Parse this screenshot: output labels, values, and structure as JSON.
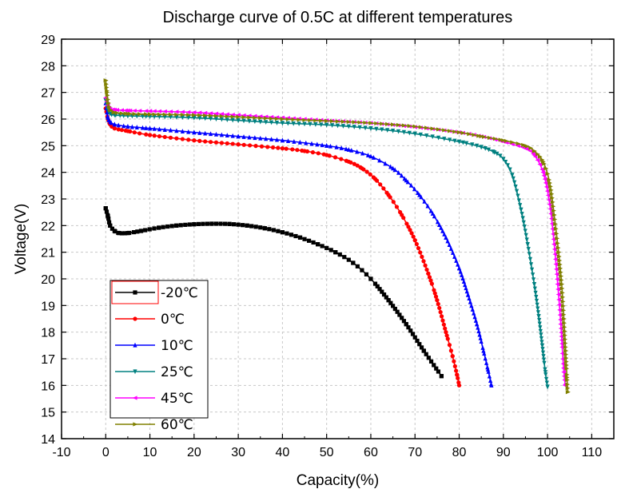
{
  "chart_data": {
    "type": "line",
    "title": "Discharge curve of 0.5C at different temperatures",
    "xlabel": "Capacity(%)",
    "ylabel": "Voltage(V)",
    "xlim": [
      -10,
      115
    ],
    "ylim": [
      14,
      29
    ],
    "xticks": [
      -10,
      0,
      10,
      20,
      30,
      40,
      50,
      60,
      70,
      80,
      90,
      100,
      110
    ],
    "yticks": [
      14,
      15,
      16,
      17,
      18,
      19,
      20,
      21,
      22,
      23,
      24,
      25,
      26,
      27,
      28,
      29
    ],
    "grid": true,
    "legend_position": "bottom-left",
    "series": [
      {
        "name": "-20℃",
        "color": "#000000",
        "marker": "square",
        "x": [
          0,
          0.5,
          1,
          2,
          3,
          5,
          8,
          12,
          16,
          20,
          24,
          28,
          32,
          36,
          40,
          44,
          48,
          52,
          56,
          60,
          64,
          68,
          72,
          76
        ],
        "y": [
          22.65,
          22.35,
          22.0,
          21.8,
          21.72,
          21.72,
          21.8,
          21.92,
          22.0,
          22.05,
          22.07,
          22.06,
          22.0,
          21.9,
          21.75,
          21.55,
          21.3,
          21.0,
          20.6,
          20.0,
          19.2,
          18.3,
          17.3,
          16.35
        ]
      },
      {
        "name": "0℃",
        "color": "#ff0000",
        "marker": "circle",
        "x": [
          0,
          0.5,
          1,
          2,
          5,
          10,
          20,
          30,
          40,
          45,
          50,
          55,
          58,
          61,
          64,
          67,
          70,
          73,
          75,
          77,
          78.5,
          79.5,
          80
        ],
        "y": [
          26.4,
          26.0,
          25.8,
          25.65,
          25.55,
          25.4,
          25.2,
          25.05,
          24.9,
          24.8,
          24.65,
          24.4,
          24.15,
          23.75,
          23.15,
          22.4,
          21.45,
          20.2,
          19.2,
          18.0,
          17.1,
          16.4,
          16.0
        ]
      },
      {
        "name": "10℃",
        "color": "#0000ff",
        "marker": "triangle-up",
        "x": [
          0,
          0.5,
          1,
          2,
          5,
          10,
          20,
          30,
          40,
          50,
          55,
          60,
          65,
          68,
          71,
          74,
          77,
          80,
          82,
          84,
          85.5,
          86.5,
          87.3
        ],
        "y": [
          26.6,
          26.05,
          25.9,
          25.8,
          25.72,
          25.65,
          25.5,
          25.35,
          25.2,
          25.0,
          24.85,
          24.6,
          24.15,
          23.7,
          23.15,
          22.45,
          21.55,
          20.4,
          19.4,
          18.3,
          17.3,
          16.6,
          16.0
        ]
      },
      {
        "name": "25℃",
        "color": "#008080",
        "marker": "triangle-down",
        "x": [
          0,
          0.5,
          1,
          2,
          5,
          10,
          20,
          30,
          40,
          50,
          60,
          70,
          80,
          85,
          88,
          90,
          92,
          94,
          95.5,
          97,
          98,
          98.8,
          99.5,
          100
        ],
        "y": [
          26.7,
          26.35,
          26.2,
          26.15,
          26.12,
          26.1,
          26.05,
          25.95,
          25.85,
          25.78,
          25.65,
          25.45,
          25.15,
          24.95,
          24.75,
          24.5,
          23.9,
          22.6,
          21.3,
          19.8,
          18.6,
          17.5,
          16.5,
          15.95
        ]
      },
      {
        "name": "45℃",
        "color": "#ff00ff",
        "marker": "triangle-left",
        "x": [
          0,
          0.5,
          1,
          2,
          5,
          10,
          20,
          30,
          40,
          50,
          60,
          70,
          80,
          85,
          90,
          95,
          97,
          99,
          100.5,
          101.5,
          102.3,
          103,
          103.4,
          103.7,
          104
        ],
        "y": [
          26.8,
          26.5,
          26.38,
          26.35,
          26.32,
          26.3,
          26.25,
          26.15,
          26.05,
          25.95,
          25.85,
          25.7,
          25.5,
          25.35,
          25.15,
          24.9,
          24.65,
          24.0,
          22.8,
          21.3,
          19.8,
          18.3,
          17.2,
          16.5,
          16.0
        ]
      },
      {
        "name": "60℃",
        "color": "#808000",
        "marker": "triangle-right",
        "x": [
          0,
          0.3,
          0.6,
          1,
          2,
          5,
          10,
          20,
          30,
          40,
          50,
          60,
          70,
          80,
          85,
          90,
          95,
          97,
          99,
          100.5,
          101.5,
          102.5,
          103.2,
          103.7,
          104.1,
          104.4,
          104.6
        ],
        "y": [
          27.45,
          27.0,
          26.6,
          26.35,
          26.25,
          26.2,
          26.18,
          26.15,
          26.08,
          26.0,
          25.93,
          25.85,
          25.72,
          25.5,
          25.35,
          25.2,
          25.0,
          24.8,
          24.4,
          23.6,
          22.4,
          21.0,
          19.8,
          18.5,
          17.3,
          16.3,
          15.75
        ]
      }
    ]
  }
}
